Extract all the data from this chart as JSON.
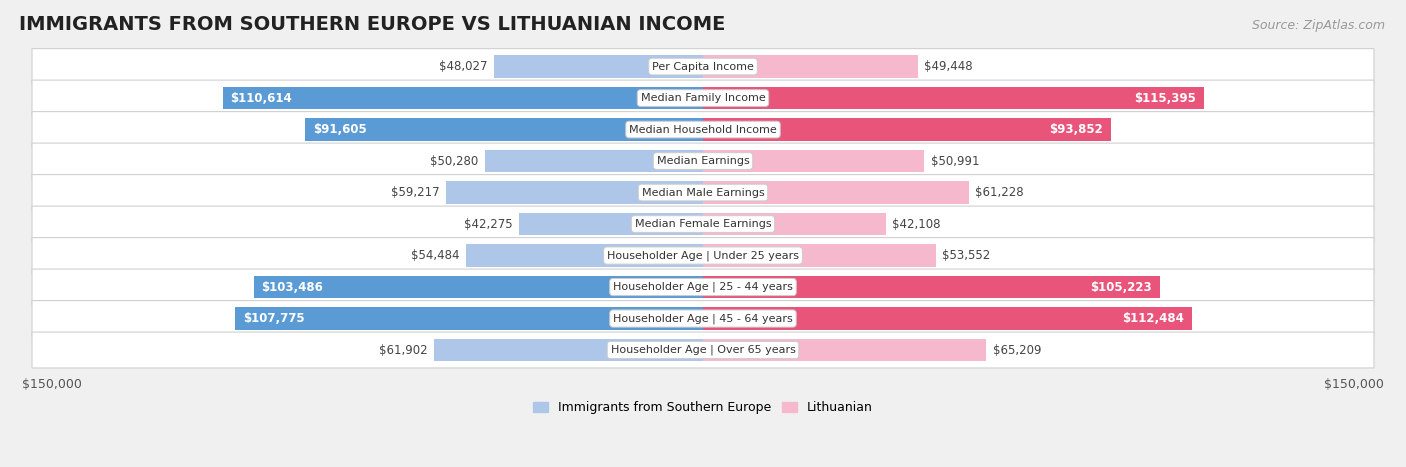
{
  "title": "IMMIGRANTS FROM SOUTHERN EUROPE VS LITHUANIAN INCOME",
  "source": "Source: ZipAtlas.com",
  "categories": [
    "Per Capita Income",
    "Median Family Income",
    "Median Household Income",
    "Median Earnings",
    "Median Male Earnings",
    "Median Female Earnings",
    "Householder Age | Under 25 years",
    "Householder Age | 25 - 44 years",
    "Householder Age | 45 - 64 years",
    "Householder Age | Over 65 years"
  ],
  "left_values": [
    48027,
    110614,
    91605,
    50280,
    59217,
    42275,
    54484,
    103486,
    107775,
    61902
  ],
  "right_values": [
    49448,
    115395,
    93852,
    50991,
    61228,
    42108,
    53552,
    105223,
    112484,
    65209
  ],
  "left_labels": [
    "$48,027",
    "$110,614",
    "$91,605",
    "$50,280",
    "$59,217",
    "$42,275",
    "$54,484",
    "$103,486",
    "$107,775",
    "$61,902"
  ],
  "right_labels": [
    "$49,448",
    "$115,395",
    "$93,852",
    "$50,991",
    "$61,228",
    "$42,108",
    "$53,552",
    "$105,223",
    "$112,484",
    "$65,209"
  ],
  "left_color_light": "#aec6e8",
  "left_color_dark": "#5b9bd5",
  "right_color_light": "#f5b8cc",
  "right_color_dark": "#e8547a",
  "left_legend": "Immigrants from Southern Europe",
  "right_legend": "Lithuanian",
  "axis_limit": 150000,
  "axis_tick_labels": [
    "$150,000",
    "$150,000"
  ],
  "background_color": "#f0f0f0",
  "row_bg_color": "#ffffff",
  "row_border_color": "#d0d0d0",
  "title_fontsize": 14,
  "source_fontsize": 9,
  "bar_height": 0.72,
  "large_threshold": 70000,
  "label_fontsize": 8.5,
  "cat_fontsize": 8.0
}
